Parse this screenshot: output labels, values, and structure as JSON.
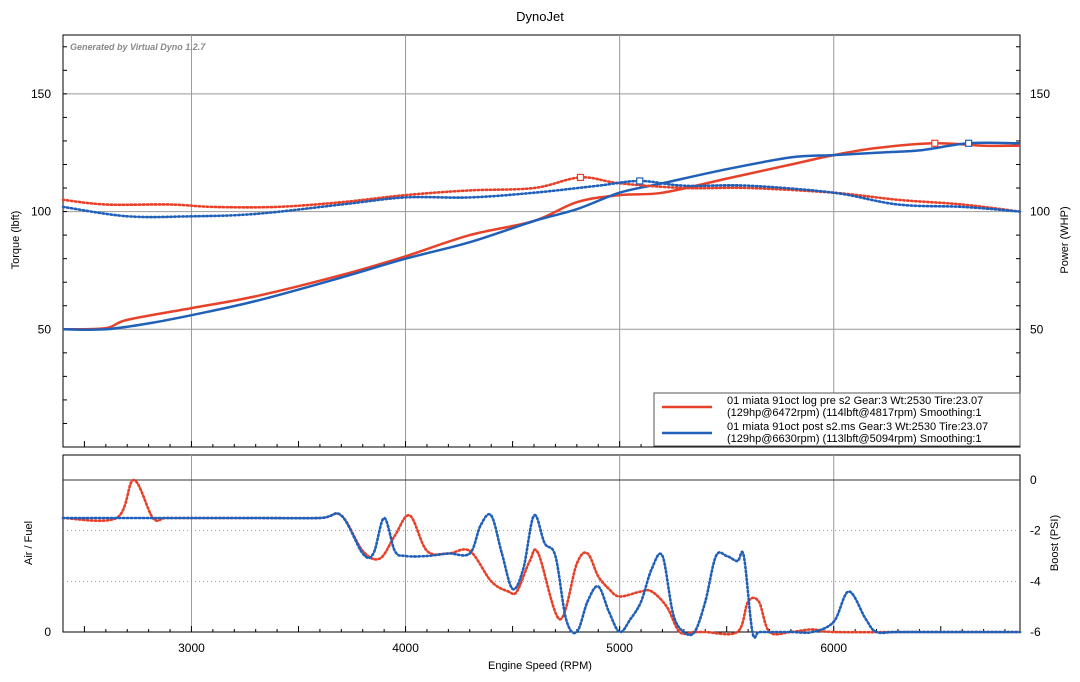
{
  "chart_data": [
    {
      "type": "line",
      "title": "DynoJet",
      "watermark": "Generated by Virtual Dyno 1.2.7",
      "xlabel": "Engine Speed (RPM)",
      "ylabel": "Torque (lbft)",
      "y2label": "Power (WHP)",
      "xlim": [
        2400,
        6870
      ],
      "ylim": [
        0,
        175
      ],
      "y2lim": [
        0,
        175
      ],
      "xticks": [
        "3000",
        "4000",
        "5000",
        "6000"
      ],
      "yticks": [
        "50",
        "100",
        "150"
      ],
      "y2ticks": [
        "50",
        "100",
        "150"
      ],
      "legend": [
        {
          "line1": "01 miata 91oct log pre s2 Gear:3 Wt:2530 Tire:23.07",
          "line2": "(129hp@6472rpm) (114lbft@4817rpm) Smoothing:1",
          "color": "#e8412a"
        },
        {
          "line1": "01 miata 91oct post s2.ms Gear:3 Wt:2530 Tire:23.07",
          "line2": "(129hp@6630rpm) (113lbft@5094rpm) Smoothing:1",
          "color": "#2060b8"
        }
      ],
      "series": [
        {
          "name": "pre s2 power",
          "color": "#e8412a",
          "style": "solid",
          "x": [
            2400,
            2600,
            2700,
            3000,
            3300,
            3700,
            4000,
            4300,
            4600,
            4800,
            5000,
            5200,
            5500,
            5800,
            6000,
            6200,
            6472,
            6700,
            6870
          ],
          "y": [
            50,
            50.5,
            54,
            59,
            64,
            73,
            81,
            90,
            96,
            104,
            107,
            108,
            114,
            120,
            124,
            127,
            129,
            128,
            128
          ]
        },
        {
          "name": "post s2 power",
          "color": "#2060b8",
          "style": "solid",
          "x": [
            2400,
            2600,
            2800,
            3000,
            3300,
            3700,
            4000,
            4300,
            4600,
            4800,
            5000,
            5200,
            5500,
            5800,
            6000,
            6200,
            6400,
            6630,
            6870
          ],
          "y": [
            50,
            50,
            52.5,
            56,
            62,
            72,
            80,
            87,
            96,
            101,
            108,
            112,
            118,
            123,
            124,
            125,
            126,
            129,
            129
          ]
        },
        {
          "name": "pre s2 torque",
          "color": "#e8412a",
          "style": "dotted",
          "x": [
            2400,
            2600,
            2900,
            3100,
            3400,
            3700,
            4000,
            4300,
            4600,
            4817,
            5000,
            5300,
            5600,
            6000,
            6300,
            6600,
            6870
          ],
          "y": [
            105,
            103,
            103,
            102,
            102,
            104,
            107,
            109,
            110,
            114.5,
            112,
            110,
            110,
            108,
            105,
            103,
            100
          ]
        },
        {
          "name": "post s2 torque",
          "color": "#2060b8",
          "style": "dotted",
          "x": [
            2400,
            2700,
            3000,
            3300,
            3700,
            4000,
            4300,
            4600,
            4900,
            5094,
            5300,
            5600,
            6000,
            6300,
            6600,
            6870
          ],
          "y": [
            102,
            98,
            98,
            99,
            103,
            106,
            106,
            108,
            111,
            113,
            111,
            111,
            108,
            103,
            102,
            100
          ]
        },
        {
          "name": "pre s2 boost",
          "color": "#e8412a",
          "style": "dotted",
          "axis": "boost",
          "x": [
            2400,
            2650,
            2730,
            2820,
            2880,
            3000,
            3300,
            3600,
            3700,
            3800,
            3880,
            3950,
            4020,
            4100,
            4200,
            4300,
            4400,
            4480,
            4520,
            4580,
            4620,
            4720,
            4800,
            4850,
            4900,
            4950,
            5000,
            5100,
            5150,
            5220,
            5280,
            5350,
            5400,
            5550,
            5600,
            5650,
            5700,
            5800,
            5900,
            6000,
            6400,
            6870
          ],
          "y": [
            -1.5,
            -1.5,
            0,
            -1.5,
            -1.5,
            -1.5,
            -1.5,
            -1.5,
            -1.4,
            -2.8,
            -3.1,
            -2.2,
            -1.4,
            -2.8,
            -2.9,
            -2.8,
            -4,
            -4.4,
            -4.4,
            -3.2,
            -2.9,
            -5.5,
            -3.3,
            -2.9,
            -3.8,
            -4.3,
            -4.6,
            -4.4,
            -4.4,
            -5,
            -6,
            -6,
            -6,
            -6,
            -4.8,
            -4.8,
            -6,
            -6,
            -5.9,
            -6,
            -6,
            -6
          ]
        },
        {
          "name": "post s2 boost",
          "color": "#2060b8",
          "style": "dotted",
          "axis": "boost",
          "x": [
            2400,
            2600,
            3000,
            3300,
            3600,
            3700,
            3800,
            3850,
            3900,
            3950,
            4000,
            4100,
            4200,
            4300,
            4350,
            4400,
            4450,
            4500,
            4550,
            4600,
            4650,
            4700,
            4750,
            4800,
            4850,
            4900,
            4950,
            5000,
            5050,
            5100,
            5150,
            5200,
            5250,
            5300,
            5350,
            5400,
            5450,
            5500,
            5550,
            5580,
            5620,
            5650,
            5700,
            5800,
            5900,
            6000,
            6070,
            6150,
            6200,
            6300,
            6600,
            6650,
            6700,
            6870
          ],
          "y": [
            -1.5,
            -1.5,
            -1.5,
            -1.5,
            -1.5,
            -1.4,
            -2.9,
            -2.9,
            -1.5,
            -2.8,
            -3,
            -3,
            -2.9,
            -2.9,
            -1.8,
            -1.4,
            -2.9,
            -4.3,
            -3.5,
            -1.4,
            -2.5,
            -3,
            -5.5,
            -6,
            -4.8,
            -4.2,
            -5.2,
            -6,
            -5.5,
            -4.8,
            -3.5,
            -3,
            -5.3,
            -6,
            -6,
            -4.8,
            -3,
            -3,
            -3.2,
            -3,
            -6,
            -6,
            -6,
            -6,
            -6,
            -5.6,
            -4.4,
            -5.5,
            -6,
            -6,
            -6,
            -6,
            -6,
            -6
          ]
        }
      ]
    },
    {
      "type": "line",
      "ylabel": "Air / Fuel",
      "y2label": "Boost (PSI)",
      "yticks": [
        "0"
      ],
      "y2ticks": [
        "0",
        "-2",
        "-4",
        "-6"
      ],
      "ylim": [
        -6,
        1
      ]
    }
  ]
}
